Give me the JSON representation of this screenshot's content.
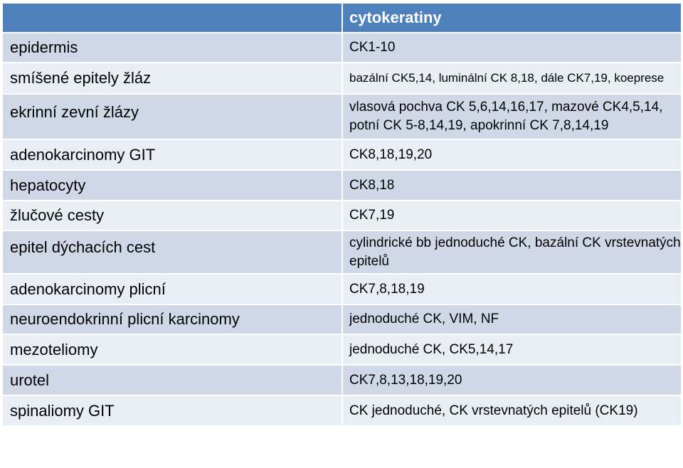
{
  "header": {
    "col1": "",
    "col2": "cytokeratiny"
  },
  "rows": [
    {
      "tissue": "epidermis",
      "value": "CK1-10"
    },
    {
      "tissue": "smíšené epitely žláz",
      "value": "bazální  CK5,14, luminální CK 8,18, dále CK7,19, koeprese"
    },
    {
      "tissue": "ekrinní zevní žlázy",
      "value": "vlasová pochva CK 5,6,14,16,17, mazové CK4,5,14, potní CK 5-8,14,19, apokrinní CK 7,8,14,19"
    },
    {
      "tissue": "adenokarcinomy GIT",
      "value": "CK8,18,19,20"
    },
    {
      "tissue": "hepatocyty",
      "value": "CK8,18"
    },
    {
      "tissue": "žlučové cesty",
      "value": "CK7,19"
    },
    {
      "tissue": "epitel dýchacích cest",
      "value": "cylindrické bb jednoduché CK, bazální CK vrstevnatých epitelů"
    },
    {
      "tissue": "adenokarcinomy plicní",
      "value": "CK7,8,18,19"
    },
    {
      "tissue": "neuroendokrinní plicní karcinomy",
      "value": "jednoduché CK, VIM, NF"
    },
    {
      "tissue": "mezoteliomy",
      "value": "jednoduché CK, CK5,14,17"
    },
    {
      "tissue": "urotel",
      "value": "CK7,8,13,18,19,20"
    },
    {
      "tissue": "spinaliomy GIT",
      "value": "CK jednoduché, CK vrstevnatých epitelů (CK19)"
    }
  ]
}
